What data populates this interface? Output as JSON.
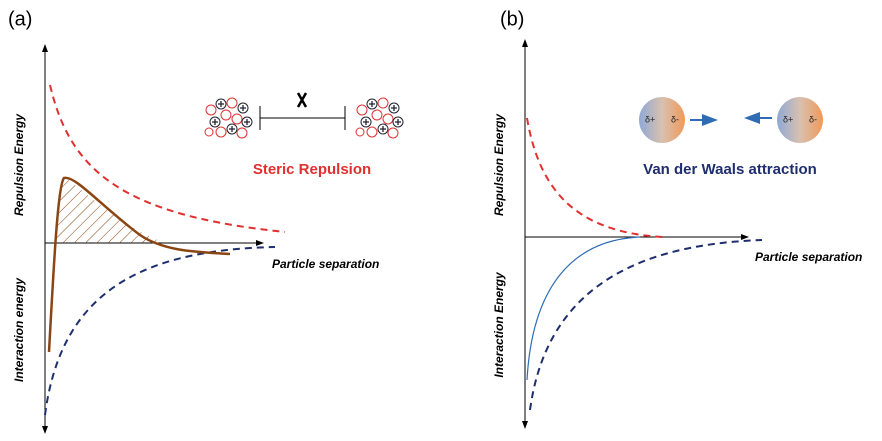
{
  "panels": [
    {
      "label": "(a)",
      "y_label_top": "Repulsion Energy",
      "y_label_bottom": "Interaction energy",
      "x_label": "Particle separation",
      "title": "Steric Repulsion"
    },
    {
      "label": "(b)",
      "y_label_top": "Repulsion Energy",
      "y_label_bottom": "Interaction  Energy",
      "x_label": "Particle separation",
      "title": "Van der Waals attraction",
      "dipole_pos": "δ+",
      "dipole_neg": "δ-"
    }
  ]
}
